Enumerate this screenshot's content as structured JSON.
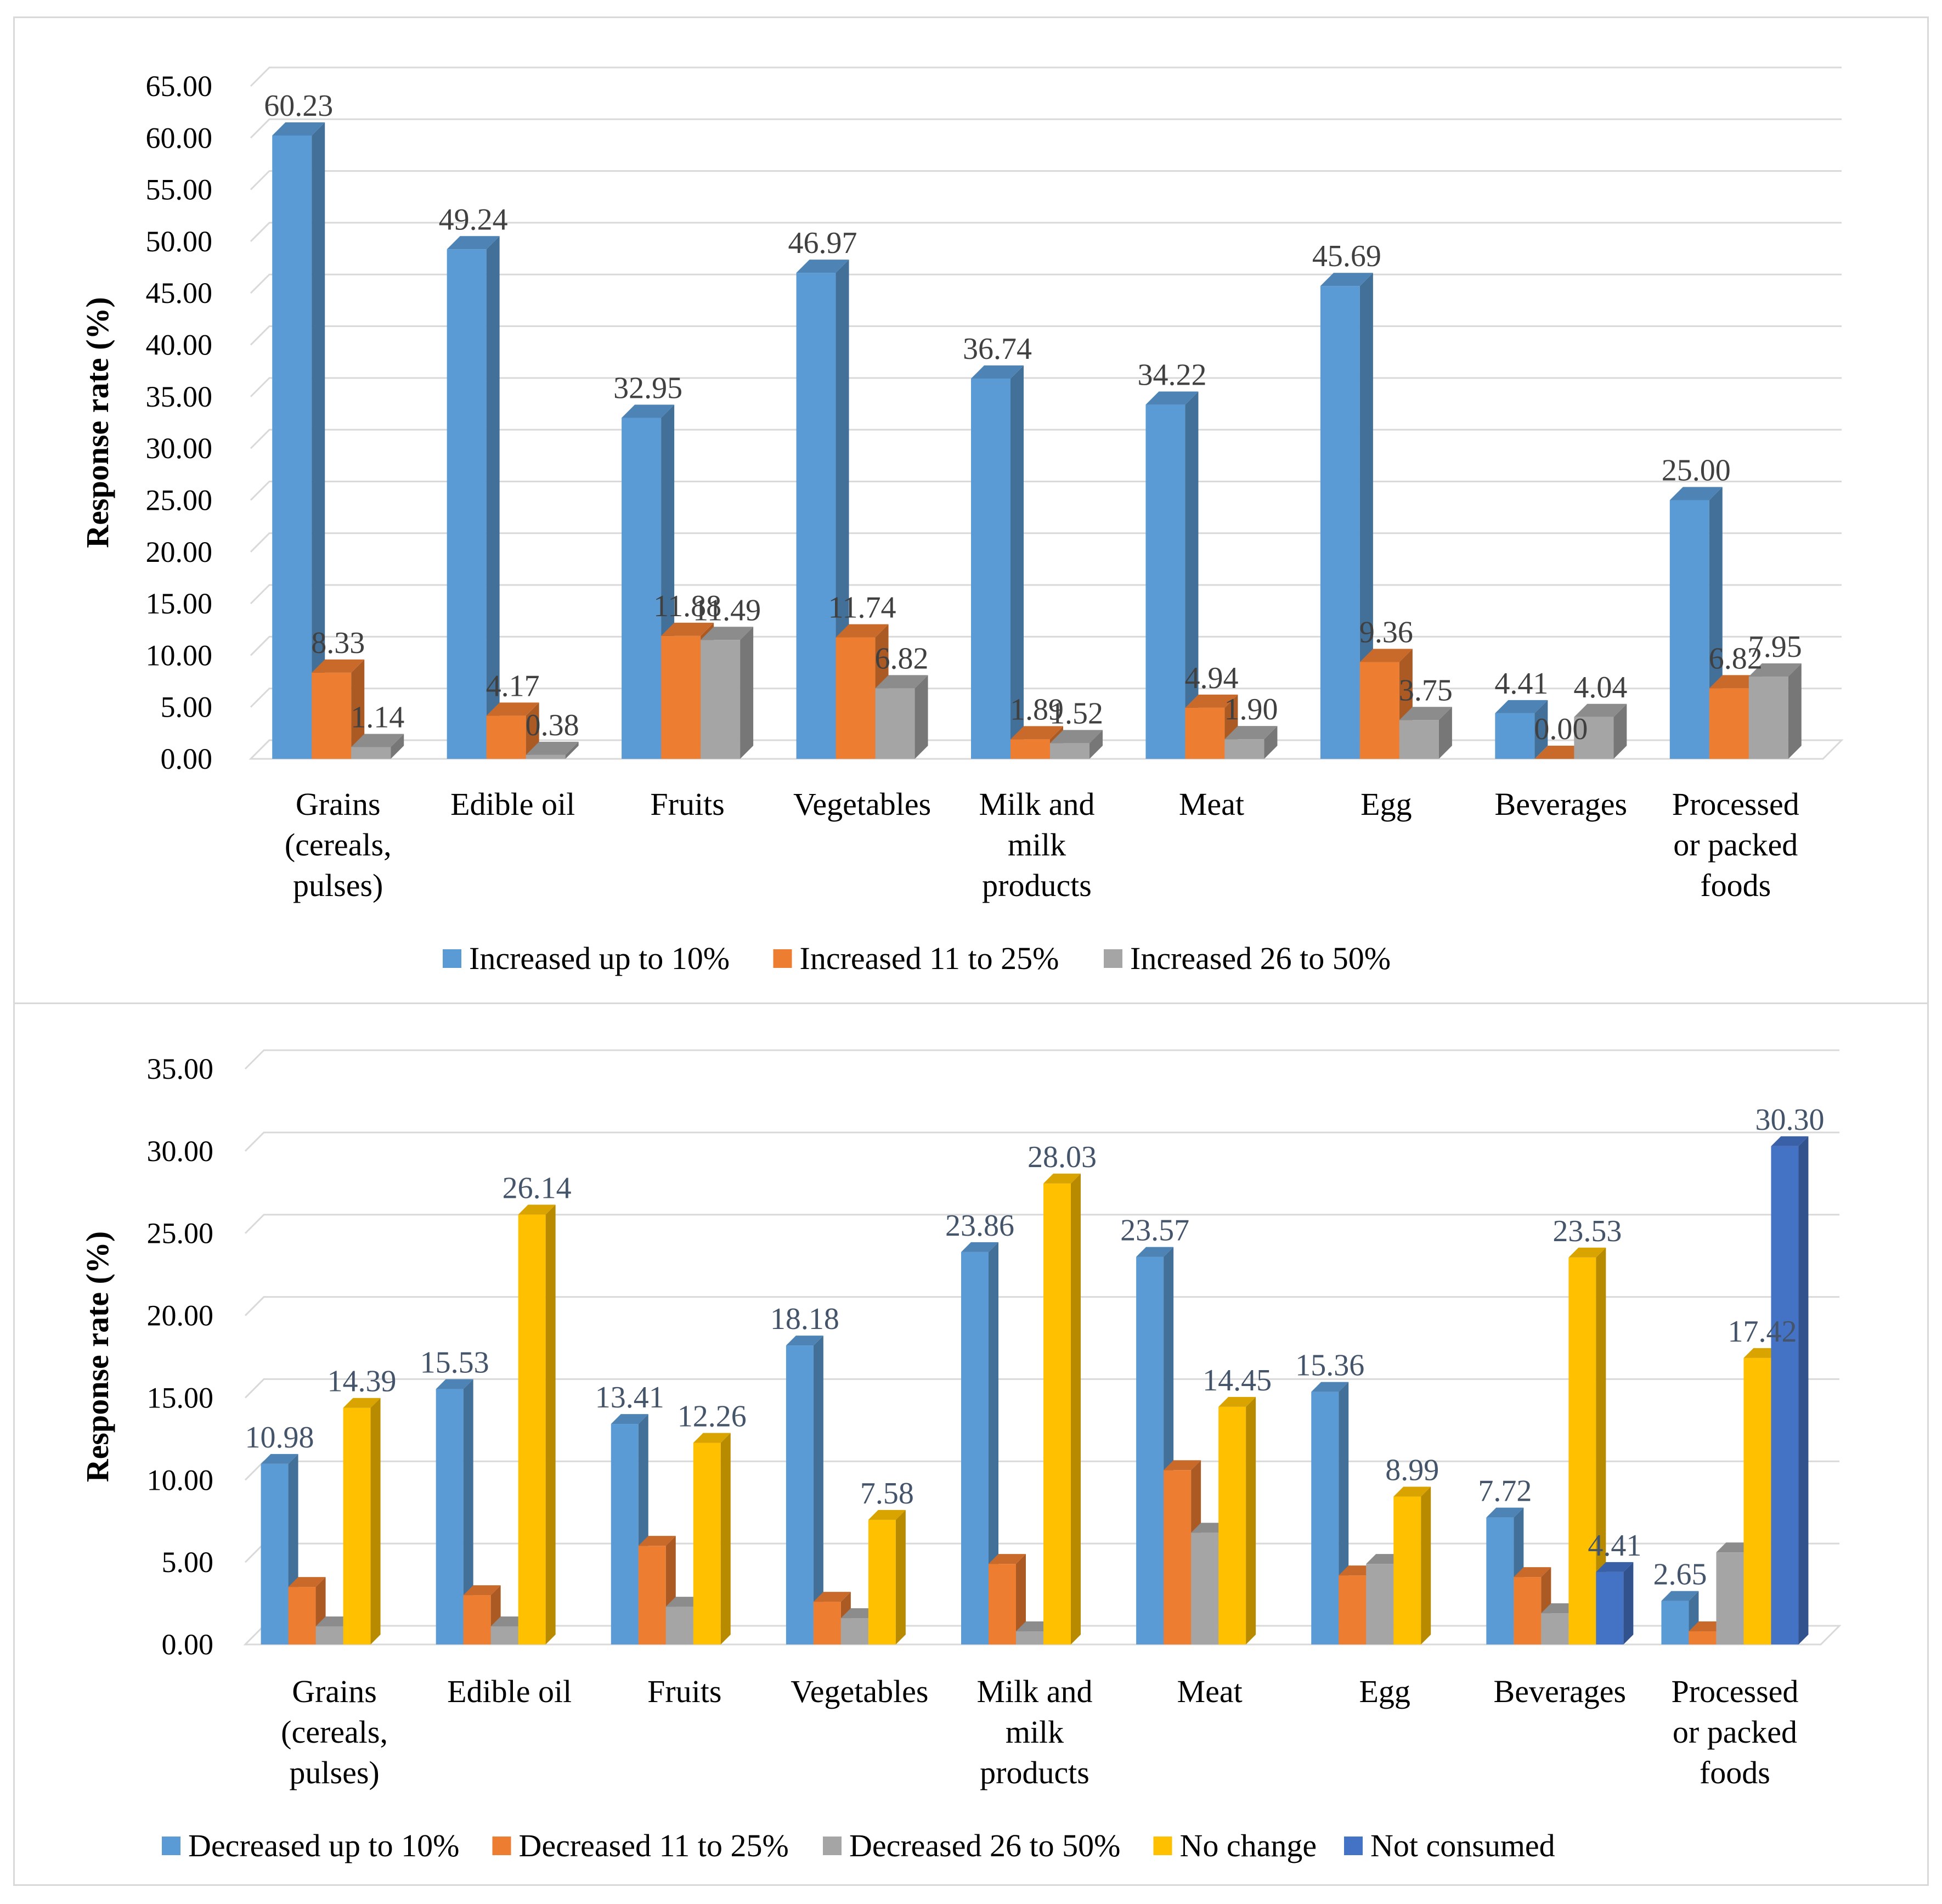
{
  "chart_data": [
    {
      "type": "bar",
      "style": "3d-clustered-column",
      "categories": [
        "Grains (cereals, pulses)",
        "Edible oil",
        "Fruits",
        "Vegetables",
        "Milk and milk products",
        "Meat",
        "Egg",
        "Beverages",
        "Processed or packed foods"
      ],
      "category_lines": [
        [
          "Grains",
          "(cereals,",
          "pulses)"
        ],
        [
          "Edible oil"
        ],
        [
          "Fruits"
        ],
        [
          "Vegetables"
        ],
        [
          "Milk and",
          "milk",
          "products"
        ],
        [
          "Meat"
        ],
        [
          "Egg"
        ],
        [
          "Beverages"
        ],
        [
          "Processed",
          "or packed",
          "foods"
        ]
      ],
      "series": [
        {
          "name": "Increased up to 10%",
          "color": "#5b9bd5",
          "values": [
            60.23,
            49.24,
            32.95,
            46.97,
            36.74,
            34.22,
            45.69,
            4.41,
            25.0
          ]
        },
        {
          "name": "Increased 11 to 25%",
          "color": "#ed7d31",
          "values": [
            8.33,
            4.17,
            11.88,
            11.74,
            1.89,
            4.94,
            9.36,
            0.0,
            6.82
          ]
        },
        {
          "name": "Increased 26 to 50%",
          "color": "#a5a5a5",
          "values": [
            1.14,
            0.38,
            11.49,
            6.82,
            1.52,
            1.9,
            3.75,
            4.04,
            7.95
          ]
        }
      ],
      "ylabel": "Response rate (%)",
      "ylim": [
        0,
        65
      ],
      "ytick_step": 5,
      "ytick_labels": [
        "0.00",
        "5.00",
        "10.00",
        "15.00",
        "20.00",
        "25.00",
        "30.00",
        "35.00",
        "40.00",
        "45.00",
        "50.00",
        "55.00",
        "60.00",
        "65.00"
      ],
      "grid": true,
      "legend": "bottom"
    },
    {
      "type": "bar",
      "style": "3d-clustered-column",
      "categories": [
        "Grains (cereals, pulses)",
        "Edible oil",
        "Fruits",
        "Vegetables",
        "Milk and milk products",
        "Meat",
        "Egg",
        "Beverages",
        "Processed or packed foods"
      ],
      "category_lines": [
        [
          "Grains",
          "(cereals,",
          "pulses)"
        ],
        [
          "Edible oil"
        ],
        [
          "Fruits"
        ],
        [
          "Vegetables"
        ],
        [
          "Milk and",
          "milk",
          "products"
        ],
        [
          "Meat"
        ],
        [
          "Egg"
        ],
        [
          "Beverages"
        ],
        [
          "Processed",
          "or packed",
          "foods"
        ]
      ],
      "series": [
        {
          "name": "Decreased up to 10%",
          "color": "#5b9bd5",
          "values": [
            10.98,
            15.53,
            13.41,
            18.18,
            23.86,
            23.57,
            15.36,
            7.72,
            2.65
          ],
          "labeled": true
        },
        {
          "name": "Decreased 11 to 25%",
          "color": "#ed7d31",
          "values": [
            3.5,
            3.0,
            6.0,
            2.6,
            4.9,
            10.6,
            4.2,
            4.1,
            0.8
          ],
          "labeled": false
        },
        {
          "name": "Decreased 26 to 50%",
          "color": "#a5a5a5",
          "values": [
            1.1,
            1.1,
            2.3,
            1.6,
            0.8,
            6.8,
            4.9,
            1.9,
            5.6
          ],
          "labeled": false
        },
        {
          "name": "No change",
          "color": "#ffc000",
          "values": [
            14.39,
            26.14,
            12.26,
            7.58,
            28.03,
            14.45,
            8.99,
            23.53,
            17.42
          ],
          "labeled": true
        },
        {
          "name": "Not consumed",
          "color": "#4472c4",
          "values": [
            null,
            null,
            null,
            null,
            null,
            null,
            null,
            4.41,
            30.3
          ],
          "labeled": true
        }
      ],
      "ylabel": "Response rate (%)",
      "ylim": [
        0,
        35
      ],
      "ytick_step": 5,
      "ytick_labels": [
        "0.00",
        "5.00",
        "10.00",
        "15.00",
        "20.00",
        "25.00",
        "30.00",
        "35.00"
      ],
      "grid": true,
      "legend": "bottom"
    }
  ]
}
